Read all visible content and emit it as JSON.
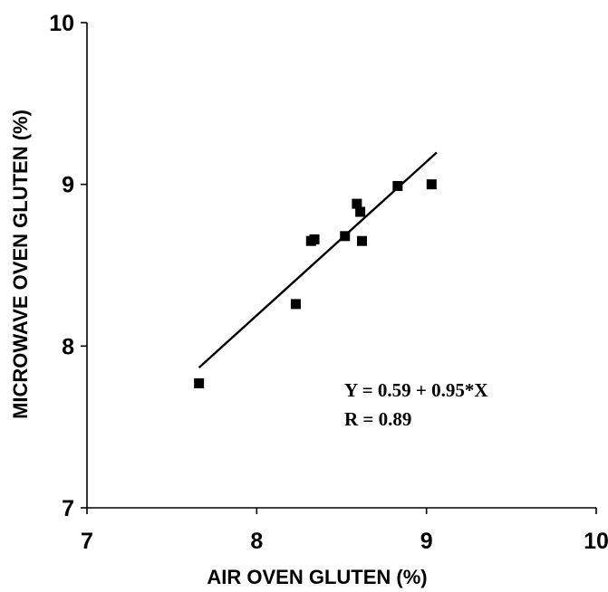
{
  "chart_data": {
    "type": "scatter",
    "title": "",
    "xlabel": "AIR OVEN GLUTEN (%)",
    "ylabel": "MICROWAVE OVEN GLUTEN (%)",
    "xlim": [
      7,
      10
    ],
    "ylim": [
      7,
      10
    ],
    "xticks": [
      7,
      8,
      9,
      10
    ],
    "yticks": [
      7,
      8,
      9,
      10
    ],
    "grid": false,
    "legend": "none",
    "marker": "square",
    "marker_color": "#000000",
    "series": [
      {
        "x": [
          7.66,
          8.23,
          8.32,
          8.34,
          8.52,
          8.59,
          8.61,
          8.62,
          8.83,
          9.03
        ],
        "y": [
          7.77,
          8.26,
          8.65,
          8.66,
          8.68,
          8.88,
          8.83,
          8.65,
          8.99,
          9.0
        ]
      }
    ],
    "fit_line": {
      "x_start": 7.66,
      "x_end": 9.06,
      "intercept": 0.59,
      "slope": 0.95
    },
    "annotations": [
      "Y = 0.59 + 0.95*X",
      "R = 0.89"
    ]
  }
}
